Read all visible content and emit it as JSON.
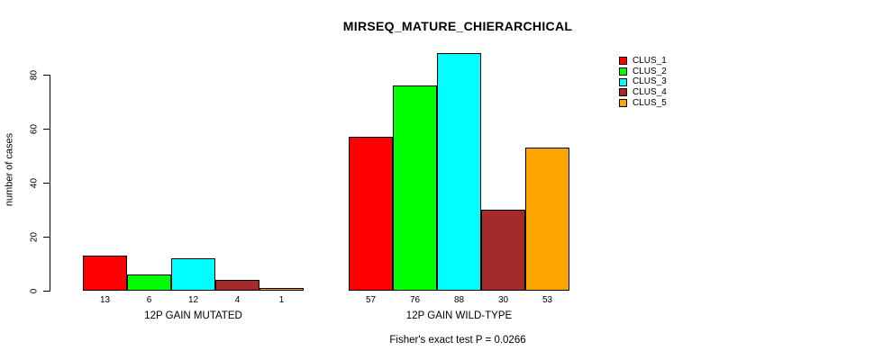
{
  "chart_data": {
    "type": "bar",
    "title": "MIRSEQ_MATURE_CHIERARCHICAL",
    "ylabel": "number of cases",
    "xlabel": "",
    "caption": "Fisher's exact test P = 0.0266",
    "ylim": [
      0,
      88
    ],
    "yticks": [
      0,
      20,
      40,
      60,
      80
    ],
    "grid": false,
    "legend_position": "top-right",
    "categories": [
      "12P GAIN MUTATED",
      "12P GAIN WILD-TYPE"
    ],
    "series": [
      {
        "name": "CLUS_1",
        "color": "#FF0000",
        "values": [
          13,
          57
        ]
      },
      {
        "name": "CLUS_2",
        "color": "#00FF00",
        "values": [
          6,
          76
        ]
      },
      {
        "name": "CLUS_3",
        "color": "#00FFFF",
        "values": [
          12,
          88
        ]
      },
      {
        "name": "CLUS_4",
        "color": "#A52A2A",
        "values": [
          4,
          30
        ]
      },
      {
        "name": "CLUS_5",
        "color": "#FFA500",
        "values": [
          1,
          53
        ]
      }
    ],
    "bar_value_labels_shown": true,
    "axis_color": "#000000",
    "background_color": "#FFFFFF"
  }
}
